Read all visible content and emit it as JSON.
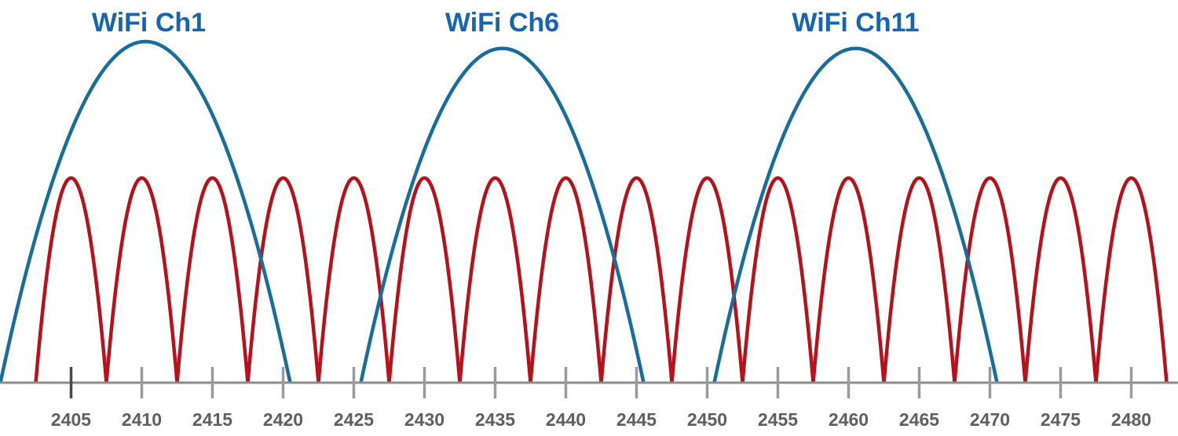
{
  "chart_data": {
    "type": "line",
    "x": [
      2405,
      2410,
      2415,
      2420,
      2425,
      2430,
      2435,
      2440,
      2445,
      2450,
      2455,
      2460,
      2465,
      2470,
      2475,
      2480
    ],
    "tick_labels": [
      "2405",
      "2410",
      "2415",
      "2420",
      "2425",
      "2430",
      "2435",
      "2440",
      "2445",
      "2450",
      "2455",
      "2460",
      "2465",
      "2470",
      "2475",
      "2480"
    ],
    "xlim": [
      2400,
      2483
    ],
    "wifi_channels": [
      {
        "label": "WiFi Ch1",
        "center": 2410.5,
        "edges": [
          2400,
          2420.5
        ],
        "peak": 1.0
      },
      {
        "label": "WiFi Ch6",
        "center": 2435.5,
        "edges": [
          2425.5,
          2445.5
        ],
        "peak": 0.98
      },
      {
        "label": "WiFi Ch11",
        "center": 2460.5,
        "edges": [
          2450.5,
          2470.5
        ],
        "peak": 0.98
      }
    ],
    "narrow_channels": {
      "centers": [
        2405,
        2410,
        2415,
        2420,
        2425,
        2430,
        2435,
        2440,
        2445,
        2450,
        2455,
        2460,
        2465,
        2470,
        2475,
        2480
      ],
      "half_width": 2.5,
      "peak": 0.6
    },
    "colors": {
      "wifi": "#176d9c",
      "narrow": "#b5121b",
      "axis": "#8c8c8c",
      "label": "#1565b0",
      "tick_text": "#5f5f5f"
    }
  }
}
